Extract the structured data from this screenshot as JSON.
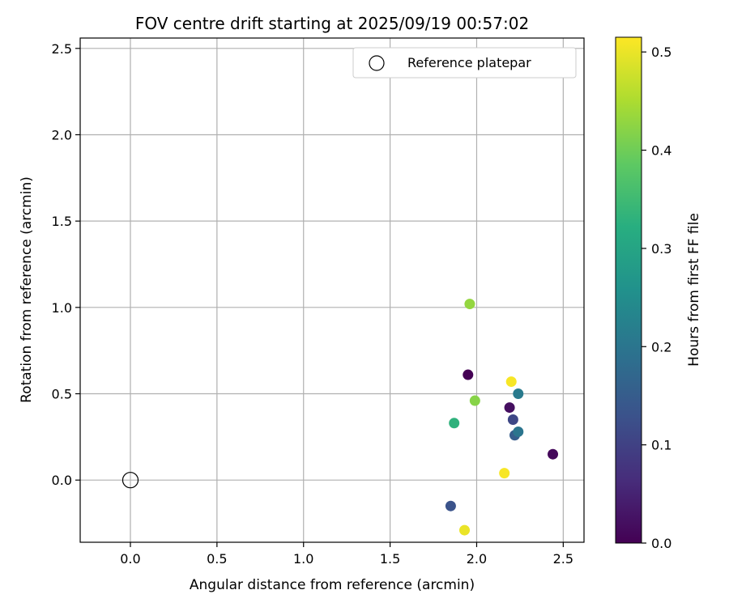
{
  "chart_data": {
    "type": "scatter",
    "title": "FOV centre drift starting at 2025/09/19 00:57:02",
    "xlabel": "Angular distance from reference (arcmin)",
    "ylabel": "Rotation from reference (arcmin)",
    "xlim": [
      -0.29,
      2.62
    ],
    "ylim": [
      -0.36,
      2.56
    ],
    "xticks": [
      0.0,
      0.5,
      1.0,
      1.5,
      2.0,
      2.5
    ],
    "yticks": [
      0.0,
      0.5,
      1.0,
      1.5,
      2.0,
      2.5
    ],
    "xtick_labels": [
      "0.0",
      "0.5",
      "1.0",
      "1.5",
      "2.0",
      "2.5"
    ],
    "ytick_labels": [
      "0.0",
      "0.5",
      "1.0",
      "1.5",
      "2.0",
      "2.5"
    ],
    "grid": true,
    "colormap": "viridis",
    "colorbar": {
      "label": "Hours from first FF file",
      "range": [
        0.0,
        0.515
      ],
      "ticks": [
        0.0,
        0.1,
        0.2,
        0.3,
        0.4,
        0.5
      ],
      "tick_labels": [
        "0.0",
        "0.1",
        "0.2",
        "0.3",
        "0.4",
        "0.5"
      ]
    },
    "legend": {
      "position": "top-right",
      "entries": [
        "Reference platepar"
      ]
    },
    "reference_point": {
      "x": 0.0,
      "y": 0.0,
      "label": "Reference platepar"
    },
    "points": [
      {
        "x": 1.95,
        "y": 0.61,
        "hours": 0.0
      },
      {
        "x": 2.44,
        "y": 0.15,
        "hours": 0.01
      },
      {
        "x": 2.19,
        "y": 0.42,
        "hours": 0.02
      },
      {
        "x": 2.21,
        "y": 0.35,
        "hours": 0.11
      },
      {
        "x": 1.85,
        "y": -0.15,
        "hours": 0.13
      },
      {
        "x": 2.22,
        "y": 0.26,
        "hours": 0.15
      },
      {
        "x": 2.24,
        "y": 0.28,
        "hours": 0.2
      },
      {
        "x": 2.24,
        "y": 0.5,
        "hours": 0.21
      },
      {
        "x": 1.87,
        "y": 0.33,
        "hours": 0.33
      },
      {
        "x": 1.99,
        "y": 0.46,
        "hours": 0.42
      },
      {
        "x": 1.96,
        "y": 1.02,
        "hours": 0.43
      },
      {
        "x": 1.93,
        "y": -0.29,
        "hours": 0.5
      },
      {
        "x": 2.2,
        "y": 0.57,
        "hours": 0.51
      },
      {
        "x": 2.16,
        "y": 0.04,
        "hours": 0.51
      }
    ]
  }
}
